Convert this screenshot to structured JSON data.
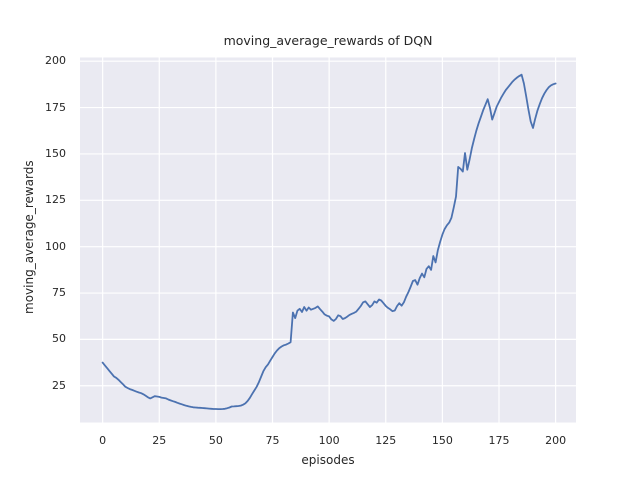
{
  "figure": {
    "background": "#ffffff"
  },
  "chart_data": {
    "type": "line",
    "title": "moving_average_rewards of DQN",
    "xlabel": "episodes",
    "ylabel": "moving_average_rewards",
    "x_ticks": [
      0,
      25,
      50,
      75,
      100,
      125,
      150,
      175,
      200
    ],
    "y_ticks": [
      25,
      50,
      75,
      100,
      125,
      150,
      175,
      200
    ],
    "xlim": [
      -10,
      209
    ],
    "ylim": [
      5.2,
      202
    ],
    "grid": true,
    "legend": "none",
    "style": {
      "plot_background": "#eaeaf2",
      "grid_color": "#ffffff",
      "line_color": "#4c72b0",
      "text_color": "#262626",
      "line_width": 1.8
    },
    "series": [
      {
        "name": "DQN",
        "x_start": 0,
        "x_step": 1,
        "values": [
          37.5,
          36,
          34.5,
          33,
          31.5,
          30,
          29.3,
          28.2,
          27,
          25.8,
          24.5,
          23.8,
          23.2,
          22.8,
          22.3,
          21.8,
          21.4,
          21,
          20.4,
          19.6,
          18.8,
          18.2,
          18.8,
          19.4,
          19.2,
          19,
          18.6,
          18.4,
          18.2,
          17.6,
          17.1,
          16.7,
          16.3,
          15.8,
          15.4,
          15,
          14.6,
          14.2,
          13.9,
          13.6,
          13.4,
          13.3,
          13.2,
          13.1,
          13,
          12.9,
          12.8,
          12.7,
          12.6,
          12.5,
          12.5,
          12.4,
          12.4,
          12.5,
          12.6,
          12.9,
          13.3,
          13.8,
          13.9,
          14,
          14.1,
          14.3,
          14.8,
          15.5,
          16.8,
          18.5,
          20.5,
          22.5,
          24.5,
          27,
          30,
          33,
          35,
          36.5,
          38.5,
          40.5,
          42.5,
          44,
          45.3,
          46.2,
          46.8,
          47.2,
          47.8,
          48.5,
          64.5,
          61.5,
          65.5,
          66.5,
          64.8,
          67.5,
          65.5,
          67.2,
          66,
          66.5,
          67,
          67.8,
          66.3,
          65,
          63.5,
          62.8,
          62.4,
          60.8,
          60,
          61,
          63,
          62.5,
          61,
          61.5,
          62.3,
          63.2,
          63.8,
          64.3,
          65,
          66.5,
          68,
          70,
          70.5,
          69,
          67.5,
          68.5,
          70.5,
          69.8,
          71.5,
          71,
          69.5,
          68,
          67,
          66.2,
          65.2,
          65.6,
          68,
          69.5,
          68.2,
          70,
          73,
          75.5,
          78.5,
          81.5,
          82,
          79.5,
          83,
          85.5,
          83.5,
          88,
          89.5,
          87.5,
          95,
          91.5,
          98,
          102.5,
          106.5,
          109.5,
          111.5,
          113,
          115.5,
          121,
          127,
          143,
          142,
          140.5,
          150.5,
          141.5,
          147,
          153,
          158,
          162.5,
          166.5,
          170,
          173.5,
          176.5,
          179.5,
          175,
          168.5,
          172,
          175.5,
          178,
          180.5,
          182.5,
          184.5,
          186,
          187.5,
          189,
          190.2,
          191.2,
          192.1,
          192.7,
          188,
          181,
          174,
          167.5,
          164,
          169,
          173.5,
          177,
          180,
          182.5,
          184.5,
          186,
          187,
          187.6,
          188
        ]
      }
    ]
  }
}
